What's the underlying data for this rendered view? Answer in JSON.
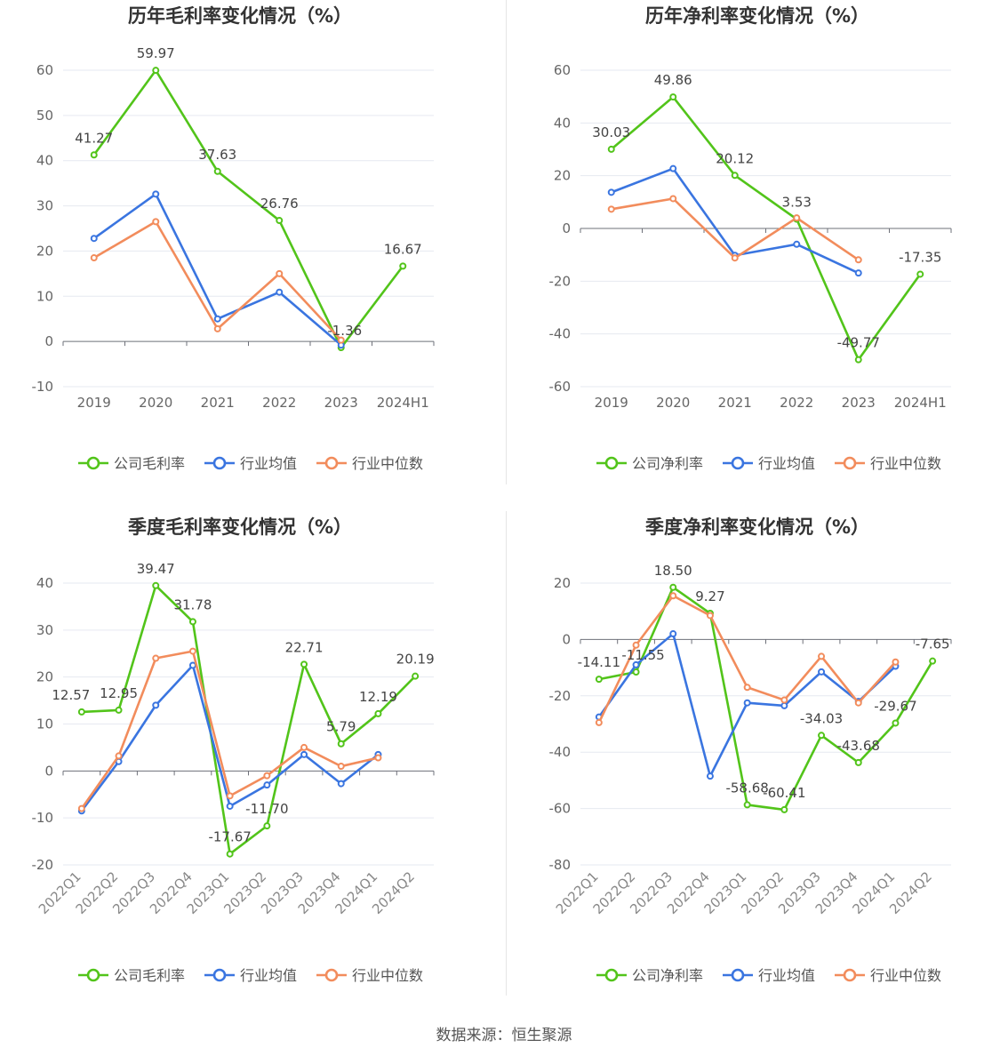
{
  "colors": {
    "company": "#52c41a",
    "industry_avg": "#3a75e0",
    "industry_median": "#f28c5c",
    "grid": "#e6e9f0",
    "axis": "#666666",
    "label": "#444444",
    "title": "#333333"
  },
  "source": "数据来源：恒生聚源",
  "chart_data": [
    {
      "type": "line",
      "title": "历年毛利率变化情况（%）",
      "categories": [
        "2019",
        "2020",
        "2021",
        "2022",
        "2023",
        "2024H1"
      ],
      "ylim": [
        -10,
        60
      ],
      "yticks": [
        -10,
        0,
        10,
        20,
        30,
        40,
        50,
        60
      ],
      "grid": true,
      "legend_position": "bottom",
      "series": [
        {
          "name": "公司毛利率",
          "key": "company",
          "values": [
            41.27,
            59.97,
            37.63,
            26.76,
            -1.36,
            16.67
          ],
          "labels": [
            "41.27",
            "59.97",
            "37.63",
            "26.76",
            "-1.36",
            "16.67"
          ]
        },
        {
          "name": "行业均值",
          "key": "industry_avg",
          "values": [
            22.8,
            32.6,
            5.0,
            10.9,
            -0.8,
            null
          ]
        },
        {
          "name": "行业中位数",
          "key": "industry_median",
          "values": [
            18.5,
            26.5,
            2.8,
            15.0,
            0.3,
            null
          ]
        }
      ]
    },
    {
      "type": "line",
      "title": "历年净利率变化情况（%）",
      "categories": [
        "2019",
        "2020",
        "2021",
        "2022",
        "2023",
        "2024H1"
      ],
      "ylim": [
        -60,
        60
      ],
      "yticks": [
        -60,
        -40,
        -20,
        0,
        20,
        40,
        60
      ],
      "grid": true,
      "legend_position": "bottom",
      "series": [
        {
          "name": "公司净利率",
          "key": "company",
          "values": [
            30.03,
            49.86,
            20.12,
            3.53,
            -49.77,
            -17.35
          ],
          "labels": [
            "30.03",
            "49.86",
            "20.12",
            "3.53",
            "-49.77",
            "-17.35"
          ]
        },
        {
          "name": "行业均值",
          "key": "industry_avg",
          "values": [
            13.7,
            22.7,
            -10.2,
            -6.0,
            -16.9,
            null
          ]
        },
        {
          "name": "行业中位数",
          "key": "industry_median",
          "values": [
            7.3,
            11.3,
            -11.2,
            4.0,
            -11.9,
            null
          ]
        }
      ]
    },
    {
      "type": "line",
      "title": "季度毛利率变化情况（%）",
      "categories": [
        "2022Q1",
        "2022Q2",
        "2022Q3",
        "2022Q4",
        "2023Q1",
        "2023Q2",
        "2023Q3",
        "2023Q4",
        "2024Q1",
        "2024Q2"
      ],
      "ylim": [
        -20,
        40
      ],
      "yticks": [
        -20,
        -10,
        0,
        10,
        20,
        30,
        40
      ],
      "grid": true,
      "legend_position": "bottom",
      "series": [
        {
          "name": "公司毛利率",
          "key": "company",
          "values": [
            12.57,
            12.95,
            39.47,
            31.78,
            -17.67,
            -11.7,
            22.71,
            5.79,
            12.19,
            20.19
          ],
          "labels": [
            "12.57",
            "12.95",
            "39.47",
            "31.78",
            "-17.67",
            "-11.70",
            "22.71",
            "5.79",
            "12.19",
            "20.19"
          ]
        },
        {
          "name": "行业均值",
          "key": "industry_avg",
          "values": [
            -8.5,
            2.0,
            14.0,
            22.5,
            -7.5,
            -3.0,
            3.5,
            -2.7,
            3.5,
            null
          ]
        },
        {
          "name": "行业中位数",
          "key": "industry_median",
          "values": [
            -8.0,
            3.2,
            24.0,
            25.5,
            -5.3,
            -1.0,
            5.0,
            1.0,
            2.8,
            null
          ]
        }
      ]
    },
    {
      "type": "line",
      "title": "季度净利率变化情况（%）",
      "categories": [
        "2022Q1",
        "2022Q2",
        "2022Q3",
        "2022Q4",
        "2023Q1",
        "2023Q2",
        "2023Q3",
        "2023Q4",
        "2024Q1",
        "2024Q2"
      ],
      "ylim": [
        -80,
        20
      ],
      "yticks": [
        -80,
        -60,
        -40,
        -20,
        0,
        20
      ],
      "grid": true,
      "legend_position": "bottom",
      "series": [
        {
          "name": "公司净利率",
          "key": "company",
          "values": [
            -14.11,
            -11.55,
            18.5,
            9.27,
            -58.68,
            -60.41,
            -34.03,
            -43.68,
            -29.67,
            -7.65
          ],
          "labels": [
            "-14.11",
            "-11.55",
            "18.50",
            "9.27",
            "-58.68",
            "-60.41",
            "-34.03",
            "-43.68",
            "-29.67",
            "-7.65"
          ]
        },
        {
          "name": "行业均值",
          "key": "industry_avg",
          "values": [
            -27.5,
            -9.0,
            2.0,
            -48.5,
            -22.5,
            -23.5,
            -11.5,
            -22.0,
            -9.5,
            null
          ]
        },
        {
          "name": "行业中位数",
          "key": "industry_median",
          "values": [
            -29.5,
            -2.0,
            15.5,
            8.5,
            -17.0,
            -21.5,
            -6.0,
            -22.5,
            -8.0,
            null
          ]
        }
      ]
    }
  ]
}
